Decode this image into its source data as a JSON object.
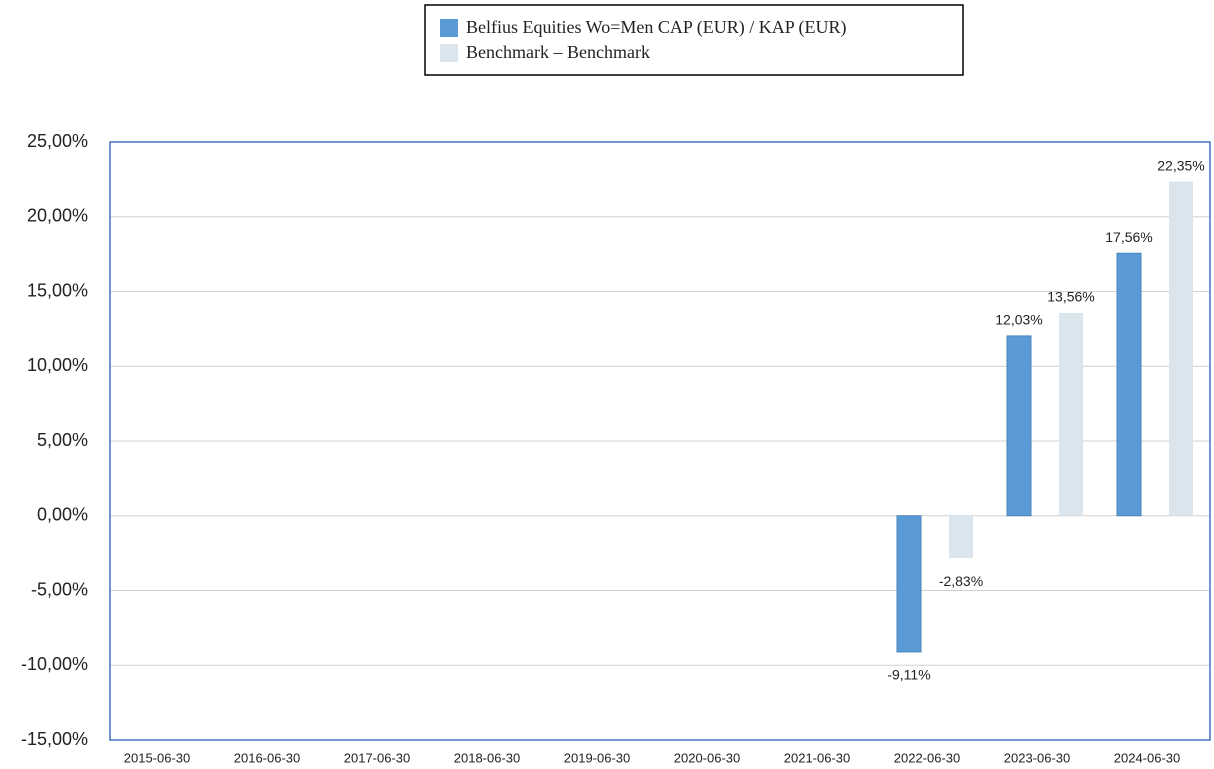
{
  "chart_data": {
    "type": "bar",
    "categories": [
      "2015-06-30",
      "2016-06-30",
      "2017-06-30",
      "2018-06-30",
      "2019-06-30",
      "2020-06-30",
      "2021-06-30",
      "2022-06-30",
      "2023-06-30",
      "2024-06-30"
    ],
    "series": [
      {
        "name": "Belfius Equities Wo=Men CAP (EUR) / KAP (EUR)",
        "color": "#5b9bd5",
        "values": [
          null,
          null,
          null,
          null,
          null,
          null,
          null,
          -9.11,
          12.03,
          17.56
        ],
        "value_labels": [
          null,
          null,
          null,
          null,
          null,
          null,
          null,
          "-9,11%",
          "12,03%",
          "17,56%"
        ]
      },
      {
        "name": "Benchmark – Benchmark",
        "color": "#dae5ee",
        "values": [
          null,
          null,
          null,
          null,
          null,
          null,
          null,
          -2.83,
          13.56,
          22.35
        ],
        "value_labels": [
          null,
          null,
          null,
          null,
          null,
          null,
          null,
          "-2,83%",
          "13,56%",
          "22,35%"
        ]
      }
    ],
    "ylim": [
      -15,
      25
    ],
    "yticks": [
      {
        "value": -15,
        "label": "-15,00%"
      },
      {
        "value": -10,
        "label": "-10,00%"
      },
      {
        "value": -5,
        "label": "-5,00%"
      },
      {
        "value": 0,
        "label": "0,00%"
      },
      {
        "value": 5,
        "label": "5,00%"
      },
      {
        "value": 10,
        "label": "10,00%"
      },
      {
        "value": 15,
        "label": "15,00%"
      },
      {
        "value": 20,
        "label": "20,00%"
      },
      {
        "value": 25,
        "label": "25,00%"
      }
    ],
    "grid": true
  }
}
